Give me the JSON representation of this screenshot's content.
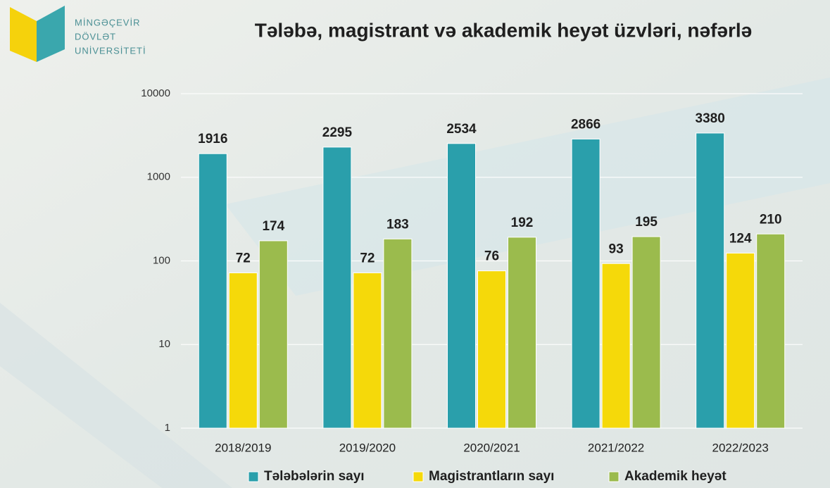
{
  "logo": {
    "lines": [
      "MİNGƏÇEVİR",
      "DÖVLƏT",
      "UNİVERSİTETİ"
    ]
  },
  "chart_data": {
    "type": "bar",
    "title": "Tələbə, magistrant və akademik heyət üzvləri, nəfərlə",
    "categories": [
      "2018/2019",
      "2019/2020",
      "2020/2021",
      "2021/2022",
      "2022/2023"
    ],
    "series": [
      {
        "name": "Tələbələrin sayı",
        "color": "#2a9fab",
        "values": [
          1916,
          2295,
          2534,
          2866,
          3380
        ]
      },
      {
        "name": "Magistrantların sayı",
        "color": "#f5d90a",
        "values": [
          72,
          72,
          76,
          93,
          124
        ]
      },
      {
        "name": "Akademik heyət",
        "color": "#9bbb4d",
        "values": [
          174,
          183,
          192,
          195,
          210
        ]
      }
    ],
    "ylim": [
      1,
      10000
    ],
    "yticks": [
      1,
      10,
      100,
      1000,
      10000
    ],
    "log_scale": true,
    "grid": true,
    "legend": "bottom"
  }
}
